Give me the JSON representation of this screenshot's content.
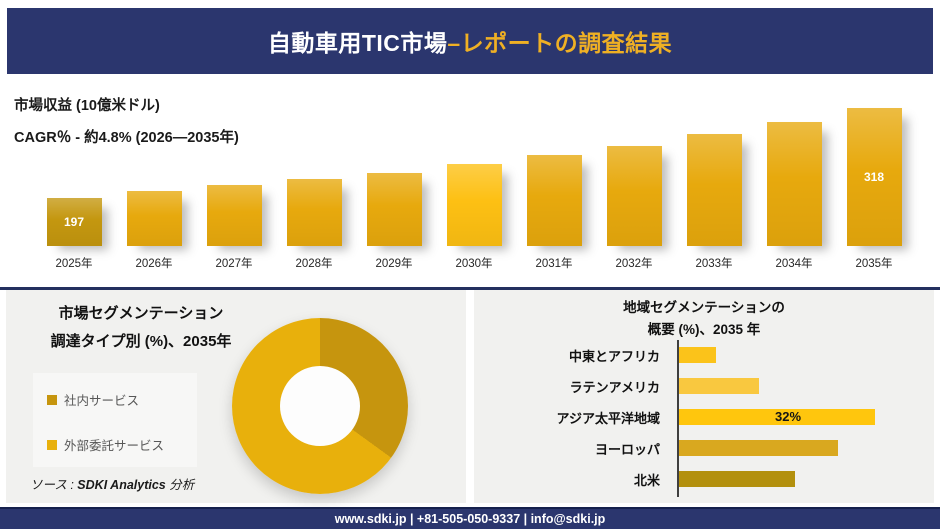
{
  "header": {
    "title_white": "自動車用TIC市場 ",
    "title_accent": "–レポートの調査結果"
  },
  "colors": {
    "navy": "#2b366e",
    "gold_accent": "#efb024",
    "panel_bg": "#f1f1ef"
  },
  "chart_data": [
    {
      "type": "bar",
      "title": "市場収益 (10億米ドル)",
      "subtitle": "CAGR％ - 約4.8% (2026―2035年)",
      "categories": [
        "2025年",
        "2026年",
        "2027年",
        "2028年",
        "2029年",
        "2030年",
        "2031年",
        "2032年",
        "2033年",
        "2034年",
        "2035年"
      ],
      "values": [
        197,
        206,
        215,
        223,
        231,
        243,
        255,
        267,
        283,
        299,
        318
      ],
      "data_labels": [
        "197",
        "",
        "",
        "",
        "",
        "",
        "",
        "",
        "",
        "",
        "318"
      ],
      "bar_colors": [
        "#c4970f",
        "#e7a90d",
        "#e7a90d",
        "#e7a90d",
        "#e7a90d",
        "#fdc013",
        "#e7a90d",
        "#e7a90d",
        "#e7a90d",
        "#e7a90d",
        "#e7a90d"
      ],
      "ylim": [
        132,
        330
      ],
      "grid": "off",
      "value_label_color": "#ffffff"
    },
    {
      "type": "pie",
      "title_line1": "市場セグメンテーション",
      "title_line2": "調達タイプ別 (%)、2035年",
      "segments": [
        {
          "label": "社内サービス",
          "value": 35,
          "color": "#c6950e"
        },
        {
          "label": "外部委託サービス",
          "value": 65,
          "color": "#e8b00c"
        }
      ],
      "donut": true,
      "legend_position": "left"
    },
    {
      "type": "bar_horizontal",
      "title_line1": "地域セグメンテーションの",
      "title_line2": "概要 (%)、2035 年",
      "categories": [
        "中東とアフリカ",
        "ラテンアメリカ",
        "アジア太平洋地域",
        "ヨーロッパ",
        "北米"
      ],
      "values": [
        6,
        13,
        32,
        26,
        19
      ],
      "data_labels": [
        "",
        "",
        "32%",
        "",
        ""
      ],
      "bar_colors": [
        "#fbc31a",
        "#f9c83f",
        "#ffc60d",
        "#d9a81f",
        "#b3900d"
      ],
      "xlim": [
        0,
        34
      ],
      "grid": "off"
    }
  ],
  "source": {
    "prefix": "ソース : ",
    "brand": "SDKI Analytics",
    "suffix": " 分析"
  },
  "footer": {
    "text": "www.sdki.jp | +81-505-050-9337 | info@sdki.jp"
  }
}
